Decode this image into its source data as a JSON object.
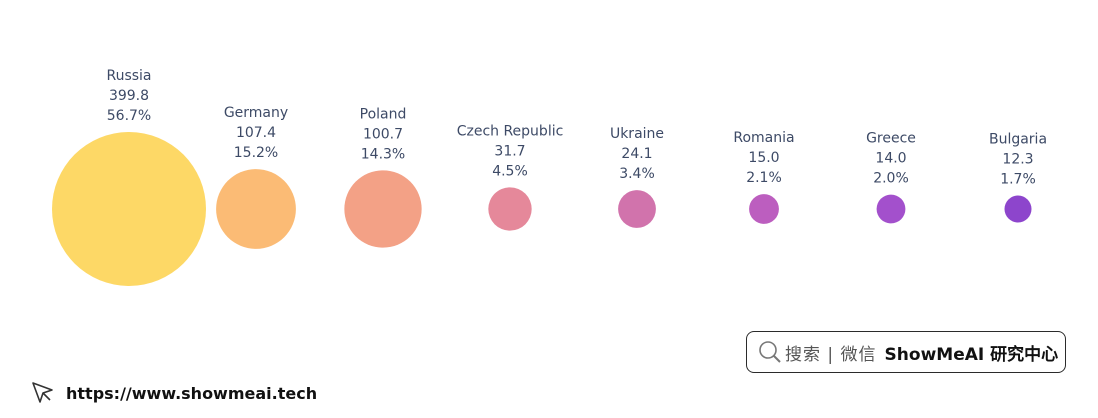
{
  "chart_data": {
    "type": "bubble",
    "title": "",
    "categories": [
      "Russia",
      "Germany",
      "Poland",
      "Czech Republic",
      "Ukraine",
      "Romania",
      "Greece",
      "Bulgaria"
    ],
    "values": [
      399.8,
      107.4,
      100.7,
      31.7,
      24.1,
      15.0,
      14.0,
      12.3
    ],
    "value_labels": [
      "399.8",
      "107.4",
      "100.7",
      "31.7",
      "24.1",
      "15.0",
      "14.0",
      "12.3"
    ],
    "percent_labels": [
      "56.7%",
      "15.2%",
      "14.3%",
      "4.5%",
      "3.4%",
      "2.1%",
      "2.0%",
      "1.7%"
    ],
    "colors": [
      "#fdd866",
      "#fbbb75",
      "#f3a186",
      "#e5889a",
      "#d173ac",
      "#bc5ebf",
      "#a350cc",
      "#8d45cc"
    ],
    "legend": "none",
    "grid": false
  },
  "watermark": {
    "search_text": "搜索 | 微信",
    "brand_text": "ShowMeAI 研究中心",
    "icon": "search-icon"
  },
  "footer": {
    "url": "https://www.showmeai.tech",
    "icon": "cursor-icon"
  }
}
